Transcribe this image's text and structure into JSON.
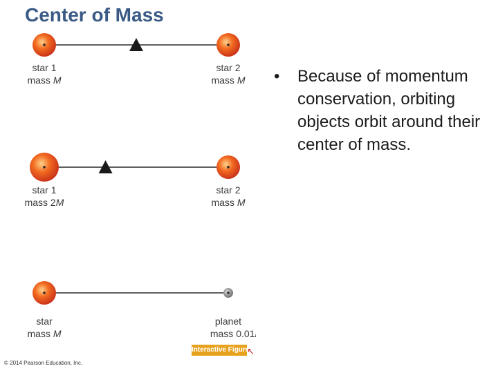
{
  "slide": {
    "title": "Center of Mass",
    "bullet": "Because of momentum conservation, orbiting objects orbit around their center of mass.",
    "bullet_marker": "•"
  },
  "figure": {
    "rows": [
      {
        "left": {
          "name": "star 1",
          "mass_prefix": "mass ",
          "mass_value": "",
          "mass_symbol": "M",
          "mass_ratio": 1
        },
        "right": {
          "name": "star 2",
          "mass_prefix": "mass ",
          "mass_value": "",
          "mass_symbol": "M",
          "mass_ratio": 1
        },
        "center_of_mass_fraction": 0.5
      },
      {
        "left": {
          "name": "star 1",
          "mass_prefix": "mass ",
          "mass_value": "2",
          "mass_symbol": "M",
          "mass_ratio": 2
        },
        "right": {
          "name": "star 2",
          "mass_prefix": "mass ",
          "mass_value": "",
          "mass_symbol": "M",
          "mass_ratio": 1
        },
        "center_of_mass_fraction": 0.333
      },
      {
        "left": {
          "name": "star",
          "mass_prefix": "mass ",
          "mass_value": "",
          "mass_symbol": "M",
          "mass_ratio": 1
        },
        "right": {
          "name": "planet",
          "mass_prefix": "mass ",
          "mass_value": "0.01",
          "mass_symbol": "M",
          "mass_ratio": 0.01
        },
        "center_of_mass_fraction": 0.01
      }
    ],
    "interactive_badge": "Interactive Figure",
    "copyright": "© 2014 Pearson Education, Inc."
  },
  "colors": {
    "title": "#3a5a85",
    "star_core": "#ffd28a",
    "star_mid": "#f26a20",
    "star_edge": "#c8301a",
    "planet": "#8a8a8a",
    "rod": "#2a2a2a",
    "fulcrum": "#1a1a1a",
    "badge": "#e6a21e"
  }
}
